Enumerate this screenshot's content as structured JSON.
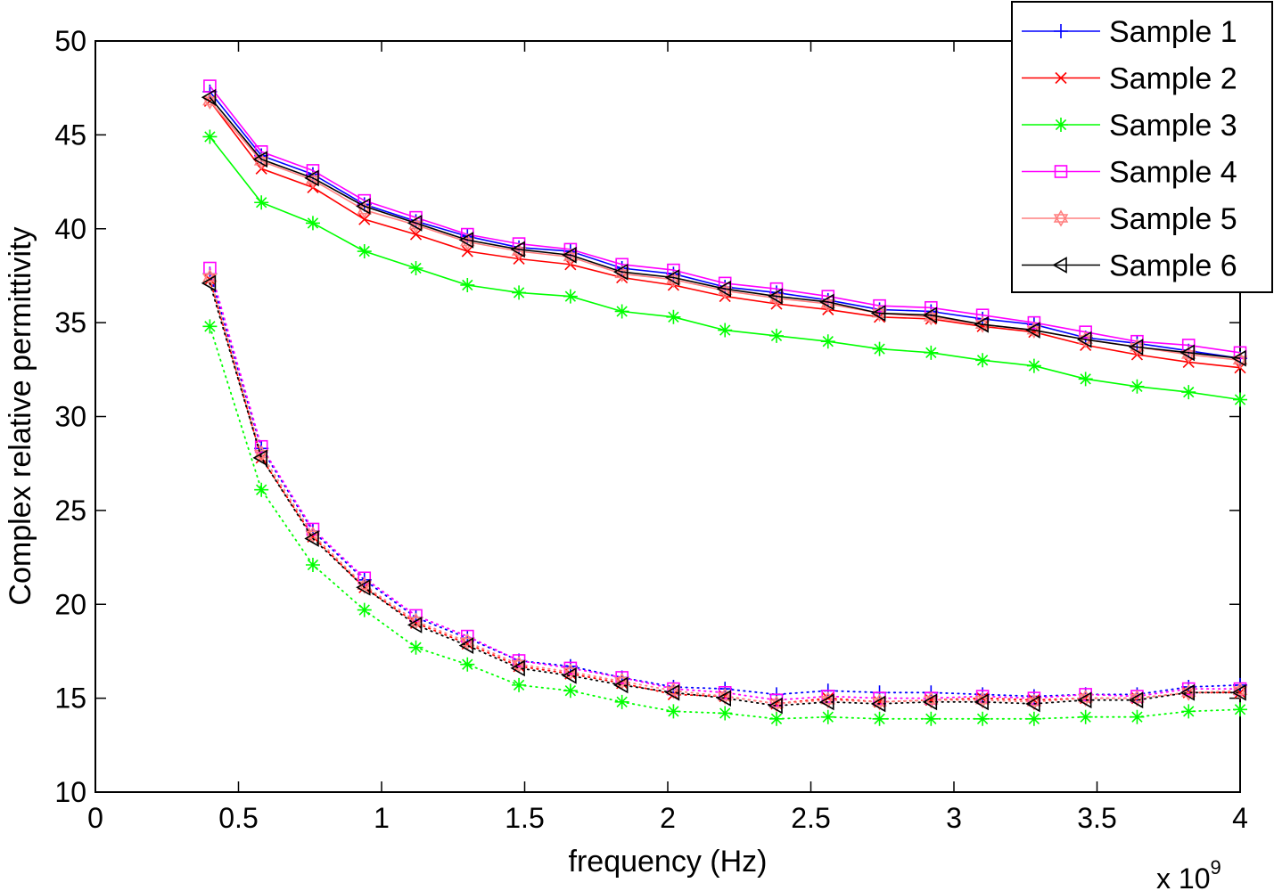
{
  "chart_data": {
    "type": "line",
    "title": "",
    "xlabel": "frequency (Hz)",
    "ylabel": "Complex relative permittivity",
    "x_multiplier": {
      "prefix": "x 10",
      "exponent": "9"
    },
    "xlim": [
      0,
      4
    ],
    "ylim": [
      10,
      50
    ],
    "xticks": [
      0,
      0.5,
      1,
      1.5,
      2,
      2.5,
      3,
      3.5,
      4
    ],
    "xtick_labels": [
      "0",
      "0.5",
      "1",
      "1.5",
      "2",
      "2.5",
      "3",
      "3.5",
      "4"
    ],
    "yticks": [
      10,
      15,
      20,
      25,
      30,
      35,
      40,
      45,
      50
    ],
    "ytick_labels": [
      "10",
      "15",
      "20",
      "25",
      "30",
      "35",
      "40",
      "45",
      "50"
    ],
    "grid": false,
    "legend_position": "top-right",
    "x": [
      0.4,
      0.58,
      0.76,
      0.94,
      1.12,
      1.3,
      1.48,
      1.66,
      1.84,
      2.02,
      2.2,
      2.38,
      2.56,
      2.74,
      2.92,
      3.1,
      3.28,
      3.46,
      3.64,
      3.82,
      4.0
    ],
    "series": [
      {
        "name": "Sample 1",
        "color": "#0000ff",
        "marker": "plus",
        "real": [
          47.3,
          43.9,
          42.9,
          41.3,
          40.4,
          39.6,
          39.0,
          38.8,
          37.9,
          37.6,
          36.9,
          36.6,
          36.2,
          35.7,
          35.6,
          35.2,
          34.9,
          34.2,
          33.9,
          33.5,
          33.1
        ],
        "imag": [
          37.6,
          28.3,
          23.9,
          21.3,
          19.3,
          18.2,
          17.0,
          16.7,
          16.1,
          15.6,
          15.5,
          15.2,
          15.4,
          15.3,
          15.3,
          15.2,
          15.1,
          15.2,
          15.2,
          15.6,
          15.7
        ]
      },
      {
        "name": "Sample 2",
        "color": "#ff0000",
        "marker": "x",
        "real": [
          46.8,
          43.2,
          42.2,
          40.5,
          39.7,
          38.8,
          38.4,
          38.1,
          37.4,
          37.0,
          36.4,
          36.0,
          35.7,
          35.3,
          35.2,
          34.8,
          34.5,
          33.8,
          33.3,
          32.9,
          32.6
        ],
        "imag": [
          37.3,
          27.8,
          23.6,
          20.9,
          19.0,
          17.9,
          16.7,
          16.3,
          15.8,
          15.2,
          15.1,
          14.7,
          15.0,
          14.8,
          14.9,
          15.0,
          14.9,
          15.0,
          15.0,
          15.3,
          15.3
        ]
      },
      {
        "name": "Sample 3",
        "color": "#00ff00",
        "marker": "asterisk",
        "real": [
          44.9,
          41.4,
          40.3,
          38.8,
          37.9,
          37.0,
          36.6,
          36.4,
          35.6,
          35.3,
          34.6,
          34.3,
          34.0,
          33.6,
          33.4,
          33.0,
          32.7,
          32.0,
          31.6,
          31.3,
          30.9
        ],
        "imag": [
          34.8,
          26.1,
          22.1,
          19.7,
          17.7,
          16.8,
          15.7,
          15.4,
          14.8,
          14.3,
          14.2,
          13.9,
          14.0,
          13.9,
          13.9,
          13.9,
          13.9,
          14.0,
          14.0,
          14.3,
          14.4
        ]
      },
      {
        "name": "Sample 4",
        "color": "#ff00ff",
        "marker": "square",
        "real": [
          47.6,
          44.1,
          43.1,
          41.5,
          40.6,
          39.7,
          39.2,
          38.9,
          38.1,
          37.8,
          37.1,
          36.8,
          36.4,
          35.9,
          35.8,
          35.4,
          35.0,
          34.5,
          34.0,
          33.8,
          33.4
        ],
        "imag": [
          37.9,
          28.4,
          24.0,
          21.4,
          19.4,
          18.3,
          17.0,
          16.6,
          16.1,
          15.5,
          15.3,
          14.9,
          15.1,
          15.0,
          15.0,
          15.1,
          15.0,
          15.2,
          15.1,
          15.5,
          15.5
        ]
      },
      {
        "name": "Sample 5",
        "color": "#ff8080",
        "marker": "hexagram",
        "real": [
          46.8,
          43.6,
          42.6,
          41.0,
          40.2,
          39.3,
          38.8,
          38.5,
          37.6,
          37.3,
          36.7,
          36.3,
          36.0,
          35.5,
          35.3,
          34.9,
          34.6,
          34.1,
          33.7,
          33.3,
          33.0
        ],
        "imag": [
          37.4,
          28.0,
          23.7,
          21.0,
          19.1,
          18.0,
          16.8,
          16.4,
          15.9,
          15.4,
          15.1,
          14.7,
          14.9,
          14.8,
          14.9,
          14.9,
          14.8,
          15.0,
          15.0,
          15.3,
          15.4
        ]
      },
      {
        "name": "Sample 6",
        "color": "#000000",
        "marker": "triangle-left",
        "real": [
          47.0,
          43.7,
          42.7,
          41.2,
          40.3,
          39.4,
          38.9,
          38.6,
          37.7,
          37.4,
          36.8,
          36.4,
          36.1,
          35.5,
          35.4,
          34.9,
          34.6,
          34.1,
          33.7,
          33.4,
          33.1
        ],
        "imag": [
          37.1,
          27.8,
          23.5,
          20.9,
          18.9,
          17.8,
          16.6,
          16.2,
          15.7,
          15.3,
          15.0,
          14.6,
          14.8,
          14.7,
          14.8,
          14.8,
          14.7,
          14.9,
          14.9,
          15.3,
          15.3
        ]
      }
    ]
  }
}
